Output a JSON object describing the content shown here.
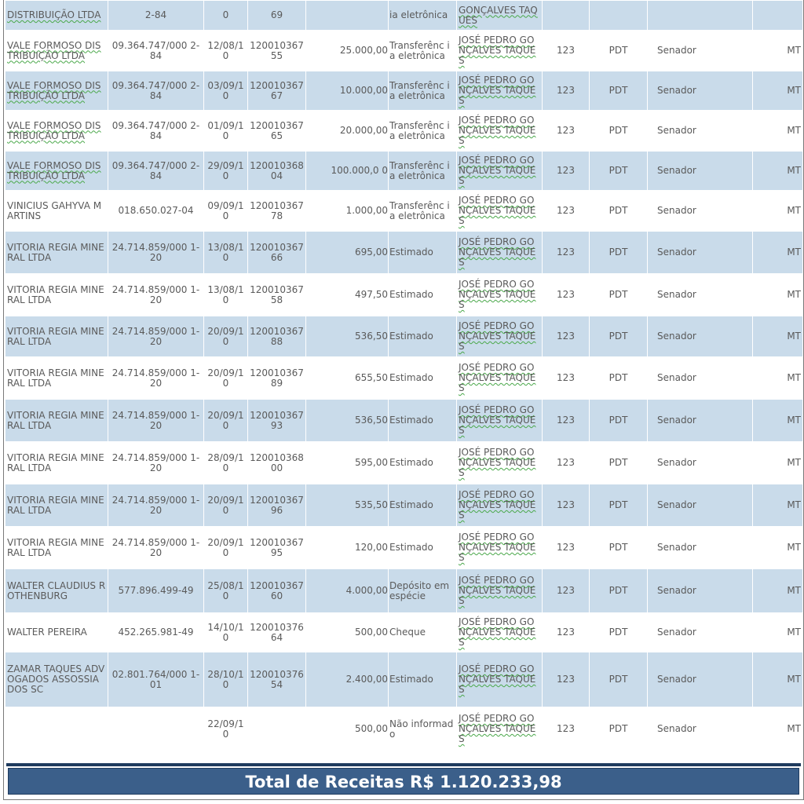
{
  "rows": [
    {
      "donor": "DISTRIBUIÇÃO LTDA",
      "doc": "2-84",
      "date": "0",
      "receipt": "69",
      "value": "",
      "kind": "ia eletrônica",
      "candidate": "GONÇALVES TAQUES",
      "number": "",
      "party": "",
      "office": "",
      "uf": "",
      "alt": true,
      "spell_donor": true
    },
    {
      "donor": "VALE FORMOSO DISTRIBUIÇÃO LTDA",
      "doc": "09.364.747/000 2-84",
      "date": "12/08/1 0",
      "receipt": "120010367 55",
      "value": "25.000,00",
      "kind": "Transferênc ia eletrônica",
      "candidate": "JOSÉ PEDRO GONÇALVES TAQUES",
      "number": "123",
      "party": "PDT",
      "office": "Senador",
      "uf": "MT",
      "alt": false,
      "spell_donor": true
    },
    {
      "donor": "VALE FORMOSO DISTRIBUIÇÃO LTDA",
      "doc": "09.364.747/000 2-84",
      "date": "03/09/1 0",
      "receipt": "120010367 67",
      "value": "10.000,00",
      "kind": "Transferênc ia eletrônica",
      "candidate": "JOSÉ PEDRO GONÇALVES TAQUES",
      "number": "123",
      "party": "PDT",
      "office": "Senador",
      "uf": "MT",
      "alt": true,
      "spell_donor": true
    },
    {
      "donor": "VALE FORMOSO DISTRIBUIÇÃO LTDA",
      "doc": "09.364.747/000 2-84",
      "date": "01/09/1 0",
      "receipt": "120010367 65",
      "value": "20.000,00",
      "kind": "Transferênc ia eletrônica",
      "candidate": "JOSÉ PEDRO GONÇALVES TAQUES",
      "number": "123",
      "party": "PDT",
      "office": "Senador",
      "uf": "MT",
      "alt": false,
      "spell_donor": true
    },
    {
      "donor": "VALE FORMOSO DISTRIBUIÇÃO LTDA",
      "doc": "09.364.747/000 2-84",
      "date": "29/09/1 0",
      "receipt": "120010368 04",
      "value": "100.000,0 0",
      "kind": "Transferênc ia eletrônica",
      "candidate": "JOSÉ PEDRO GONÇALVES TAQUES",
      "number": "123",
      "party": "PDT",
      "office": "Senador",
      "uf": "MT",
      "alt": true,
      "spell_donor": true
    },
    {
      "donor": "VINICIUS GAHYVA MARTINS",
      "doc": "018.650.027-04",
      "date": "09/09/1 0",
      "receipt": "120010367 78",
      "value": "1.000,00",
      "kind": "Transferênc ia eletrônica",
      "candidate": "JOSÉ PEDRO GONÇALVES TAQUES",
      "number": "123",
      "party": "PDT",
      "office": "Senador",
      "uf": "MT",
      "alt": false,
      "spell_donor": false
    },
    {
      "donor": "VITORIA REGIA MINERAL LTDA",
      "doc": "24.714.859/000 1-20",
      "date": "13/08/1 0",
      "receipt": "120010367 66",
      "value": "695,00",
      "kind": "Estimado",
      "candidate": "JOSÉ PEDRO GONÇALVES TAQUES",
      "number": "123",
      "party": "PDT",
      "office": "Senador",
      "uf": "MT",
      "alt": true,
      "spell_donor": false
    },
    {
      "donor": "VITORIA REGIA MINERAL LTDA",
      "doc": "24.714.859/000 1-20",
      "date": "13/08/1 0",
      "receipt": "120010367 58",
      "value": "497,50",
      "kind": "Estimado",
      "candidate": "JOSÉ PEDRO GONÇALVES TAQUES",
      "number": "123",
      "party": "PDT",
      "office": "Senador",
      "uf": "MT",
      "alt": false,
      "spell_donor": false
    },
    {
      "donor": "VITORIA REGIA MINERAL LTDA",
      "doc": "24.714.859/000 1-20",
      "date": "20/09/1 0",
      "receipt": "120010367 88",
      "value": "536,50",
      "kind": "Estimado",
      "candidate": "JOSÉ PEDRO GONÇALVES TAQUES",
      "number": "123",
      "party": "PDT",
      "office": "Senador",
      "uf": "MT",
      "alt": true,
      "spell_donor": false
    },
    {
      "donor": "VITORIA REGIA MINERAL LTDA",
      "doc": "24.714.859/000 1-20",
      "date": "20/09/1 0",
      "receipt": "120010367 89",
      "value": "655,50",
      "kind": "Estimado",
      "candidate": "JOSÉ PEDRO GONÇALVES TAQUES",
      "number": "123",
      "party": "PDT",
      "office": "Senador",
      "uf": "MT",
      "alt": false,
      "spell_donor": false
    },
    {
      "donor": "VITORIA REGIA MINERAL LTDA",
      "doc": "24.714.859/000 1-20",
      "date": "20/09/1 0",
      "receipt": "120010367 93",
      "value": "536,50",
      "kind": "Estimado",
      "candidate": "JOSÉ PEDRO GONÇALVES TAQUES",
      "number": "123",
      "party": "PDT",
      "office": "Senador",
      "uf": "MT",
      "alt": true,
      "spell_donor": false
    },
    {
      "donor": "VITORIA REGIA MINERAL LTDA",
      "doc": "24.714.859/000 1-20",
      "date": "28/09/1 0",
      "receipt": "120010368 00",
      "value": "595,00",
      "kind": "Estimado",
      "candidate": "JOSÉ PEDRO GONÇALVES TAQUES",
      "number": "123",
      "party": "PDT",
      "office": "Senador",
      "uf": "MT",
      "alt": false,
      "spell_donor": false
    },
    {
      "donor": "VITORIA REGIA MINERAL LTDA",
      "doc": "24.714.859/000 1-20",
      "date": "20/09/1 0",
      "receipt": "120010367 96",
      "value": "535,50",
      "kind": "Estimado",
      "candidate": "JOSÉ PEDRO GONÇALVES TAQUES",
      "number": "123",
      "party": "PDT",
      "office": "Senador",
      "uf": "MT",
      "alt": true,
      "spell_donor": false
    },
    {
      "donor": "VITORIA REGIA MINERAL LTDA",
      "doc": "24.714.859/000 1-20",
      "date": "20/09/1 0",
      "receipt": "120010367 95",
      "value": "120,00",
      "kind": "Estimado",
      "candidate": "JOSÉ PEDRO GONÇALVES TAQUES",
      "number": "123",
      "party": "PDT",
      "office": "Senador",
      "uf": "MT",
      "alt": false,
      "spell_donor": false
    },
    {
      "donor": "WALTER CLAUDIUS ROTHENBURG",
      "doc": "577.896.499-49",
      "date": "25/08/1 0",
      "receipt": "120010367 60",
      "value": "4.000,00",
      "kind": "Depósito em espécie",
      "candidate": "JOSÉ PEDRO GONÇALVES TAQUES",
      "number": "123",
      "party": "PDT",
      "office": "Senador",
      "uf": "MT",
      "alt": true,
      "spell_donor": false
    },
    {
      "donor": "WALTER PEREIRA",
      "doc": "452.265.981-49",
      "date": "14/10/1 0",
      "receipt": "120010376 64",
      "value": "500,00",
      "kind": "Cheque",
      "candidate": "JOSÉ PEDRO GONÇALVES TAQUES",
      "number": "123",
      "party": "PDT",
      "office": "Senador",
      "uf": "MT",
      "alt": false,
      "spell_donor": false
    },
    {
      "donor": "ZAMAR TAQUES ADVOGADOS ASSOSSIADOS SC",
      "doc": "02.801.764/000 1-01",
      "date": "28/10/1 0",
      "receipt": "120010376 54",
      "value": "2.400,00",
      "kind": "Estimado",
      "candidate": "JOSÉ PEDRO GONÇALVES TAQUES",
      "number": "123",
      "party": "PDT",
      "office": "Senador",
      "uf": "MT",
      "alt": true,
      "spell_donor": false
    },
    {
      "donor": "",
      "doc": "",
      "date": "22/09/1 0",
      "receipt": "",
      "value": "500,00",
      "kind": "Não informado",
      "candidate": "JOSÉ PEDRO GONÇALVES TAQUES",
      "number": "123",
      "party": "PDT",
      "office": "Senador",
      "uf": "MT",
      "alt": false,
      "spell_donor": false
    }
  ],
  "total": {
    "label": "Total de Receitas R$ 1.120.233,98"
  },
  "colors": {
    "alt_row": "#c9dbea",
    "total_bg": "#3b5f8a",
    "spell_underline": "#4aa84a"
  }
}
